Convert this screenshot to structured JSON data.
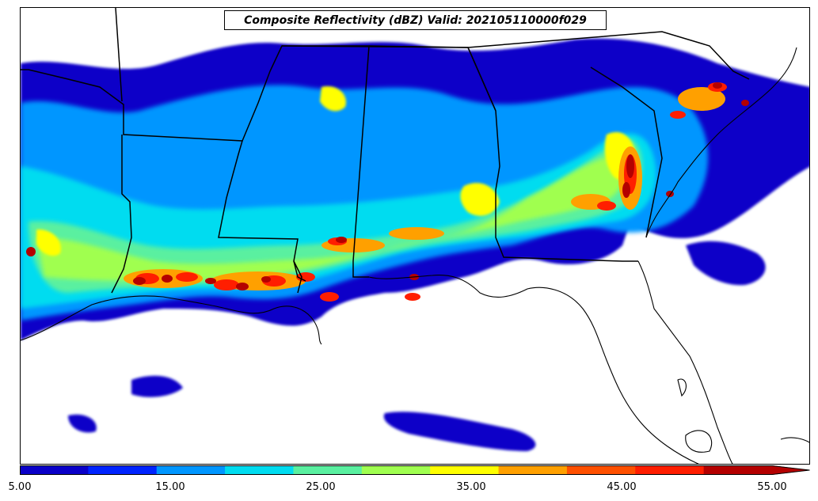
{
  "title": "Composite Reflectivity (dBZ) Valid: 202105110000f029",
  "colorbar": {
    "levels": [
      5,
      10,
      15,
      20,
      25,
      30,
      35,
      40,
      45,
      50,
      55
    ],
    "colors": [
      "#0a00c8",
      "#0024ff",
      "#0096ff",
      "#00dcf0",
      "#5af0a0",
      "#a0ff50",
      "#ffff00",
      "#ffa000",
      "#ff5000",
      "#ff1e00",
      "#b40000"
    ],
    "extend_color": "#b40000",
    "tick_labels": [
      "5.00",
      "15.00",
      "25.00",
      "35.00",
      "45.00",
      "55.00"
    ]
  },
  "map": {
    "region": "Southeastern United States",
    "data_colors": {
      "low": "#0a00c8",
      "mid": "#00dcf0",
      "high": "#ffff00",
      "extreme": "#b40000"
    }
  }
}
